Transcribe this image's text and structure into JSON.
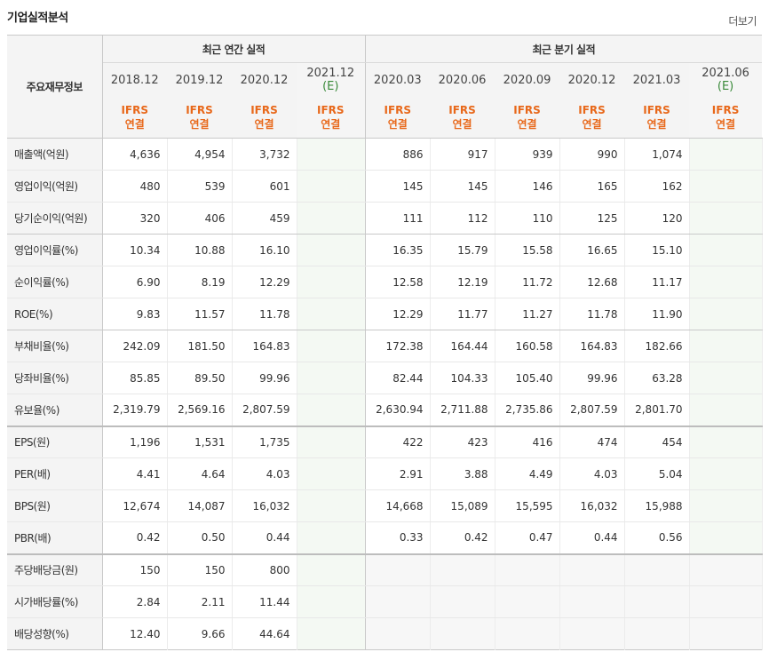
{
  "page": {
    "title": "기업실적분석",
    "more_label": "더보기"
  },
  "table": {
    "row_header_label": "주요재무정보",
    "annual_group_label": "최근 연간 실적",
    "quarter_group_label": "최근 분기 실적",
    "annual_periods": [
      {
        "label": "2018.12",
        "est": ""
      },
      {
        "label": "2019.12",
        "est": ""
      },
      {
        "label": "2020.12",
        "est": ""
      },
      {
        "label": "2021.12",
        "est": "(E)"
      }
    ],
    "quarter_periods": [
      {
        "label": "2020.03",
        "est": ""
      },
      {
        "label": "2020.06",
        "est": ""
      },
      {
        "label": "2020.09",
        "est": ""
      },
      {
        "label": "2020.12",
        "est": ""
      },
      {
        "label": "2021.03",
        "est": ""
      },
      {
        "label": "2021.06",
        "est": "(E)"
      }
    ],
    "ifrs_top": "IFRS",
    "ifrs_bottom": "연결",
    "rows": [
      {
        "label": "매출액(억원)",
        "annual": [
          "4,636",
          "4,954",
          "3,732",
          ""
        ],
        "quarter": [
          "886",
          "917",
          "939",
          "990",
          "1,074",
          ""
        ]
      },
      {
        "label": "영업이익(억원)",
        "annual": [
          "480",
          "539",
          "601",
          ""
        ],
        "quarter": [
          "145",
          "145",
          "146",
          "165",
          "162",
          ""
        ]
      },
      {
        "label": "당기순이익(억원)",
        "annual": [
          "320",
          "406",
          "459",
          ""
        ],
        "quarter": [
          "111",
          "112",
          "110",
          "125",
          "120",
          ""
        ]
      },
      {
        "label": "영업이익률(%)",
        "annual": [
          "10.34",
          "10.88",
          "16.10",
          ""
        ],
        "quarter": [
          "16.35",
          "15.79",
          "15.58",
          "16.65",
          "15.10",
          ""
        ]
      },
      {
        "label": "순이익률(%)",
        "annual": [
          "6.90",
          "8.19",
          "12.29",
          ""
        ],
        "quarter": [
          "12.58",
          "12.19",
          "11.72",
          "12.68",
          "11.17",
          ""
        ]
      },
      {
        "label": "ROE(%)",
        "annual": [
          "9.83",
          "11.57",
          "11.78",
          ""
        ],
        "quarter": [
          "12.29",
          "11.77",
          "11.27",
          "11.78",
          "11.90",
          ""
        ]
      },
      {
        "label": "부채비율(%)",
        "annual": [
          "242.09",
          "181.50",
          "164.83",
          ""
        ],
        "quarter": [
          "172.38",
          "164.44",
          "160.58",
          "164.83",
          "182.66",
          ""
        ]
      },
      {
        "label": "당좌비율(%)",
        "annual": [
          "85.85",
          "89.50",
          "99.96",
          ""
        ],
        "quarter": [
          "82.44",
          "104.33",
          "105.40",
          "99.96",
          "63.28",
          ""
        ]
      },
      {
        "label": "유보율(%)",
        "annual": [
          "2,319.79",
          "2,569.16",
          "2,807.59",
          ""
        ],
        "quarter": [
          "2,630.94",
          "2,711.88",
          "2,735.86",
          "2,807.59",
          "2,801.70",
          ""
        ]
      },
      {
        "label": "EPS(원)",
        "annual": [
          "1,196",
          "1,531",
          "1,735",
          ""
        ],
        "quarter": [
          "422",
          "423",
          "416",
          "474",
          "454",
          ""
        ]
      },
      {
        "label": "PER(배)",
        "annual": [
          "4.41",
          "4.64",
          "4.03",
          ""
        ],
        "quarter": [
          "2.91",
          "3.88",
          "4.49",
          "4.03",
          "5.04",
          ""
        ]
      },
      {
        "label": "BPS(원)",
        "annual": [
          "12,674",
          "14,087",
          "16,032",
          ""
        ],
        "quarter": [
          "14,668",
          "15,089",
          "15,595",
          "16,032",
          "15,988",
          ""
        ]
      },
      {
        "label": "PBR(배)",
        "annual": [
          "0.42",
          "0.50",
          "0.44",
          ""
        ],
        "quarter": [
          "0.33",
          "0.42",
          "0.47",
          "0.44",
          "0.56",
          ""
        ]
      },
      {
        "label": "주당배당금(원)",
        "annual": [
          "150",
          "150",
          "800",
          ""
        ],
        "quarter": [
          "",
          "",
          "",
          "",
          "",
          ""
        ]
      },
      {
        "label": "시가배당률(%)",
        "annual": [
          "2.84",
          "2.11",
          "11.44",
          ""
        ],
        "quarter": [
          "",
          "",
          "",
          "",
          "",
          ""
        ]
      },
      {
        "label": "배당성향(%)",
        "annual": [
          "12.40",
          "9.66",
          "44.64",
          ""
        ],
        "quarter": [
          "",
          "",
          "",
          "",
          "",
          ""
        ]
      }
    ]
  }
}
